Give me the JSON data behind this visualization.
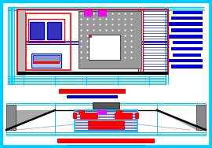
{
  "bg_color": "#ffffff",
  "fig_width": 2.7,
  "fig_height": 1.88,
  "dpi": 100,
  "cyan": "#00ccff",
  "red": "#ff0000",
  "blue": "#0000dd",
  "black": "#000000",
  "gray": "#888888",
  "dgray": "#555555",
  "magenta": "#ff00ff",
  "white": "#ffffff"
}
